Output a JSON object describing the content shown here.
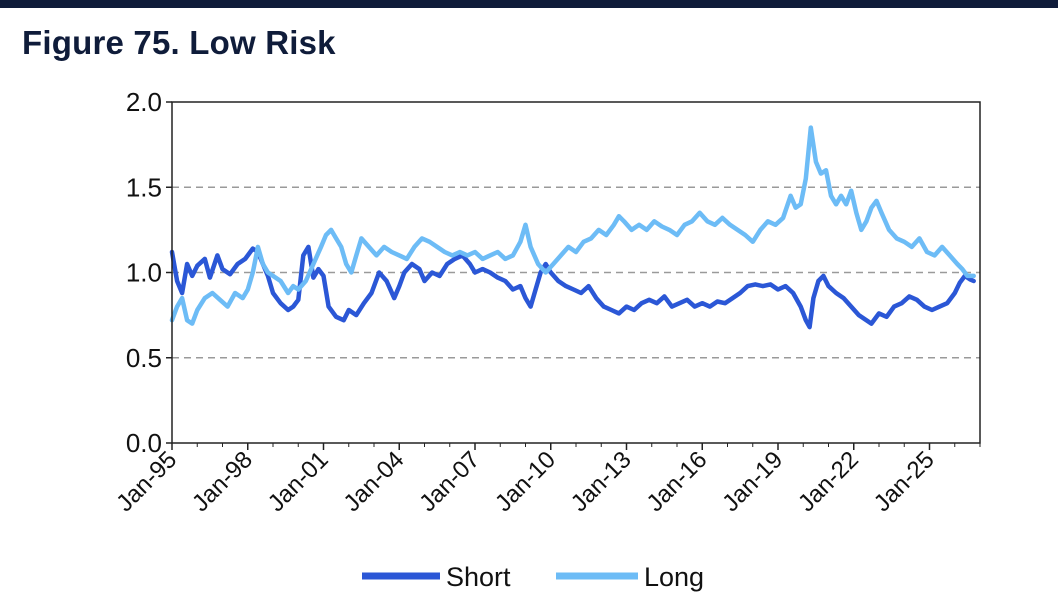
{
  "title": "Figure 75. Low Risk",
  "chart_data": {
    "type": "line",
    "title": "Figure 75. Low Risk",
    "xlabel": "",
    "ylabel": "",
    "ylim": [
      0,
      2.0
    ],
    "yticks": [
      "0.0",
      "0.5",
      "1.0",
      "1.5",
      "2.0"
    ],
    "xticks": [
      "Jan-95",
      "Jan-98",
      "Jan-01",
      "Jan-04",
      "Jan-07",
      "Jan-10",
      "Jan-13",
      "Jan-16",
      "Jan-19",
      "Jan-22",
      "Jan-25"
    ],
    "xrange": [
      1995.0,
      2027.0
    ],
    "grid": "horizontal dashed",
    "legend_position": "bottom",
    "series": [
      {
        "name": "Short",
        "color": "#2b57d6",
        "points": [
          [
            1995.0,
            1.12
          ],
          [
            1995.2,
            0.95
          ],
          [
            1995.4,
            0.88
          ],
          [
            1995.6,
            1.05
          ],
          [
            1995.8,
            0.98
          ],
          [
            1996.0,
            1.04
          ],
          [
            1996.3,
            1.08
          ],
          [
            1996.5,
            0.97
          ],
          [
            1996.8,
            1.1
          ],
          [
            1997.0,
            1.02
          ],
          [
            1997.3,
            0.99
          ],
          [
            1997.6,
            1.05
          ],
          [
            1997.9,
            1.08
          ],
          [
            1998.0,
            1.1
          ],
          [
            1998.2,
            1.14
          ],
          [
            1998.4,
            1.12
          ],
          [
            1998.6,
            1.05
          ],
          [
            1998.8,
            0.98
          ],
          [
            1999.0,
            0.88
          ],
          [
            1999.3,
            0.82
          ],
          [
            1999.6,
            0.78
          ],
          [
            1999.8,
            0.8
          ],
          [
            2000.0,
            0.84
          ],
          [
            2000.2,
            1.1
          ],
          [
            2000.4,
            1.15
          ],
          [
            2000.6,
            0.97
          ],
          [
            2000.8,
            1.02
          ],
          [
            2001.0,
            0.98
          ],
          [
            2001.2,
            0.8
          ],
          [
            2001.5,
            0.74
          ],
          [
            2001.8,
            0.72
          ],
          [
            2002.0,
            0.78
          ],
          [
            2002.3,
            0.75
          ],
          [
            2002.6,
            0.82
          ],
          [
            2002.9,
            0.88
          ],
          [
            2003.2,
            1.0
          ],
          [
            2003.5,
            0.95
          ],
          [
            2003.8,
            0.85
          ],
          [
            2004.0,
            0.92
          ],
          [
            2004.2,
            1.0
          ],
          [
            2004.5,
            1.05
          ],
          [
            2004.8,
            1.02
          ],
          [
            2005.0,
            0.95
          ],
          [
            2005.3,
            1.0
          ],
          [
            2005.6,
            0.98
          ],
          [
            2005.9,
            1.05
          ],
          [
            2006.2,
            1.08
          ],
          [
            2006.5,
            1.1
          ],
          [
            2006.8,
            1.05
          ],
          [
            2007.0,
            1.0
          ],
          [
            2007.3,
            1.02
          ],
          [
            2007.6,
            1.0
          ],
          [
            2007.9,
            0.97
          ],
          [
            2008.2,
            0.95
          ],
          [
            2008.5,
            0.9
          ],
          [
            2008.8,
            0.92
          ],
          [
            2009.0,
            0.85
          ],
          [
            2009.2,
            0.8
          ],
          [
            2009.4,
            0.9
          ],
          [
            2009.6,
            1.0
          ],
          [
            2009.8,
            1.05
          ],
          [
            2010.0,
            1.0
          ],
          [
            2010.3,
            0.95
          ],
          [
            2010.6,
            0.92
          ],
          [
            2010.9,
            0.9
          ],
          [
            2011.2,
            0.88
          ],
          [
            2011.5,
            0.92
          ],
          [
            2011.8,
            0.85
          ],
          [
            2012.1,
            0.8
          ],
          [
            2012.4,
            0.78
          ],
          [
            2012.7,
            0.76
          ],
          [
            2013.0,
            0.8
          ],
          [
            2013.3,
            0.78
          ],
          [
            2013.6,
            0.82
          ],
          [
            2013.9,
            0.84
          ],
          [
            2014.2,
            0.82
          ],
          [
            2014.5,
            0.86
          ],
          [
            2014.8,
            0.8
          ],
          [
            2015.1,
            0.82
          ],
          [
            2015.4,
            0.84
          ],
          [
            2015.7,
            0.8
          ],
          [
            2016.0,
            0.82
          ],
          [
            2016.3,
            0.8
          ],
          [
            2016.6,
            0.83
          ],
          [
            2016.9,
            0.82
          ],
          [
            2017.2,
            0.85
          ],
          [
            2017.5,
            0.88
          ],
          [
            2017.8,
            0.92
          ],
          [
            2018.1,
            0.93
          ],
          [
            2018.4,
            0.92
          ],
          [
            2018.7,
            0.93
          ],
          [
            2019.0,
            0.9
          ],
          [
            2019.3,
            0.92
          ],
          [
            2019.6,
            0.88
          ],
          [
            2019.9,
            0.8
          ],
          [
            2020.1,
            0.72
          ],
          [
            2020.25,
            0.68
          ],
          [
            2020.4,
            0.85
          ],
          [
            2020.6,
            0.95
          ],
          [
            2020.8,
            0.98
          ],
          [
            2021.0,
            0.92
          ],
          [
            2021.3,
            0.88
          ],
          [
            2021.6,
            0.85
          ],
          [
            2021.9,
            0.8
          ],
          [
            2022.2,
            0.75
          ],
          [
            2022.5,
            0.72
          ],
          [
            2022.7,
            0.7
          ],
          [
            2023.0,
            0.76
          ],
          [
            2023.3,
            0.74
          ],
          [
            2023.6,
            0.8
          ],
          [
            2023.9,
            0.82
          ],
          [
            2024.2,
            0.86
          ],
          [
            2024.5,
            0.84
          ],
          [
            2024.8,
            0.8
          ],
          [
            2025.1,
            0.78
          ],
          [
            2025.4,
            0.8
          ],
          [
            2025.7,
            0.82
          ],
          [
            2026.0,
            0.88
          ],
          [
            2026.2,
            0.94
          ],
          [
            2026.4,
            0.98
          ],
          [
            2026.6,
            0.96
          ],
          [
            2026.75,
            0.95
          ]
        ]
      },
      {
        "name": "Long",
        "color": "#6dbcf6",
        "points": [
          [
            1995.0,
            0.72
          ],
          [
            1995.2,
            0.8
          ],
          [
            1995.4,
            0.85
          ],
          [
            1995.6,
            0.72
          ],
          [
            1995.8,
            0.7
          ],
          [
            1996.0,
            0.78
          ],
          [
            1996.3,
            0.85
          ],
          [
            1996.6,
            0.88
          ],
          [
            1996.9,
            0.84
          ],
          [
            1997.2,
            0.8
          ],
          [
            1997.5,
            0.88
          ],
          [
            1997.8,
            0.85
          ],
          [
            1998.0,
            0.9
          ],
          [
            1998.2,
            1.0
          ],
          [
            1998.4,
            1.15
          ],
          [
            1998.6,
            1.05
          ],
          [
            1998.8,
            1.0
          ],
          [
            1999.0,
            0.98
          ],
          [
            1999.3,
            0.95
          ],
          [
            1999.6,
            0.88
          ],
          [
            1999.8,
            0.92
          ],
          [
            2000.0,
            0.9
          ],
          [
            2000.3,
            0.95
          ],
          [
            2000.6,
            1.05
          ],
          [
            2000.9,
            1.15
          ],
          [
            2001.1,
            1.22
          ],
          [
            2001.3,
            1.25
          ],
          [
            2001.5,
            1.2
          ],
          [
            2001.7,
            1.15
          ],
          [
            2001.9,
            1.05
          ],
          [
            2002.1,
            1.0
          ],
          [
            2002.3,
            1.1
          ],
          [
            2002.5,
            1.2
          ],
          [
            2002.8,
            1.15
          ],
          [
            2003.1,
            1.1
          ],
          [
            2003.4,
            1.15
          ],
          [
            2003.7,
            1.12
          ],
          [
            2004.0,
            1.1
          ],
          [
            2004.3,
            1.08
          ],
          [
            2004.6,
            1.15
          ],
          [
            2004.9,
            1.2
          ],
          [
            2005.2,
            1.18
          ],
          [
            2005.5,
            1.15
          ],
          [
            2005.8,
            1.12
          ],
          [
            2006.1,
            1.1
          ],
          [
            2006.4,
            1.12
          ],
          [
            2006.7,
            1.1
          ],
          [
            2007.0,
            1.12
          ],
          [
            2007.3,
            1.08
          ],
          [
            2007.6,
            1.1
          ],
          [
            2007.9,
            1.12
          ],
          [
            2008.2,
            1.08
          ],
          [
            2008.5,
            1.1
          ],
          [
            2008.8,
            1.18
          ],
          [
            2009.0,
            1.28
          ],
          [
            2009.2,
            1.15
          ],
          [
            2009.5,
            1.05
          ],
          [
            2009.8,
            1.0
          ],
          [
            2010.1,
            1.05
          ],
          [
            2010.4,
            1.1
          ],
          [
            2010.7,
            1.15
          ],
          [
            2011.0,
            1.12
          ],
          [
            2011.3,
            1.18
          ],
          [
            2011.6,
            1.2
          ],
          [
            2011.9,
            1.25
          ],
          [
            2012.2,
            1.22
          ],
          [
            2012.5,
            1.28
          ],
          [
            2012.7,
            1.33
          ],
          [
            2012.9,
            1.3
          ],
          [
            2013.2,
            1.25
          ],
          [
            2013.5,
            1.28
          ],
          [
            2013.8,
            1.25
          ],
          [
            2014.1,
            1.3
          ],
          [
            2014.4,
            1.27
          ],
          [
            2014.7,
            1.25
          ],
          [
            2015.0,
            1.22
          ],
          [
            2015.3,
            1.28
          ],
          [
            2015.6,
            1.3
          ],
          [
            2015.9,
            1.35
          ],
          [
            2016.2,
            1.3
          ],
          [
            2016.5,
            1.28
          ],
          [
            2016.8,
            1.32
          ],
          [
            2017.1,
            1.28
          ],
          [
            2017.4,
            1.25
          ],
          [
            2017.7,
            1.22
          ],
          [
            2018.0,
            1.18
          ],
          [
            2018.3,
            1.25
          ],
          [
            2018.6,
            1.3
          ],
          [
            2018.9,
            1.28
          ],
          [
            2019.2,
            1.32
          ],
          [
            2019.5,
            1.45
          ],
          [
            2019.7,
            1.38
          ],
          [
            2019.9,
            1.4
          ],
          [
            2020.1,
            1.55
          ],
          [
            2020.3,
            1.85
          ],
          [
            2020.5,
            1.65
          ],
          [
            2020.7,
            1.58
          ],
          [
            2020.9,
            1.6
          ],
          [
            2021.1,
            1.45
          ],
          [
            2021.3,
            1.4
          ],
          [
            2021.5,
            1.45
          ],
          [
            2021.7,
            1.4
          ],
          [
            2021.9,
            1.48
          ],
          [
            2022.1,
            1.35
          ],
          [
            2022.3,
            1.25
          ],
          [
            2022.5,
            1.3
          ],
          [
            2022.7,
            1.38
          ],
          [
            2022.9,
            1.42
          ],
          [
            2023.1,
            1.35
          ],
          [
            2023.4,
            1.25
          ],
          [
            2023.7,
            1.2
          ],
          [
            2024.0,
            1.18
          ],
          [
            2024.3,
            1.15
          ],
          [
            2024.6,
            1.2
          ],
          [
            2024.9,
            1.12
          ],
          [
            2025.2,
            1.1
          ],
          [
            2025.5,
            1.15
          ],
          [
            2025.8,
            1.1
          ],
          [
            2026.1,
            1.05
          ],
          [
            2026.3,
            1.02
          ],
          [
            2026.5,
            0.98
          ],
          [
            2026.75,
            0.98
          ]
        ]
      }
    ]
  }
}
